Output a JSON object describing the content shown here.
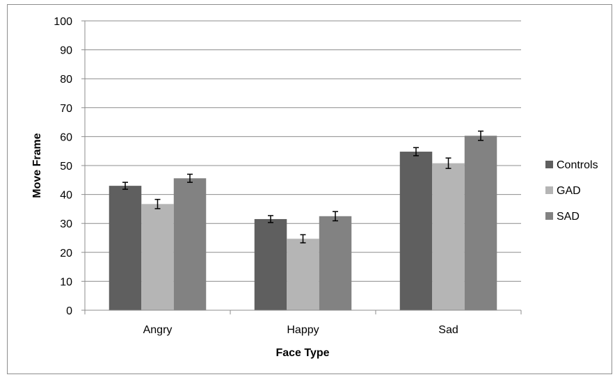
{
  "chart_data": {
    "type": "bar",
    "title": "",
    "xlabel": "Face Type",
    "ylabel": "Move Frame",
    "categories": [
      "Angry",
      "Happy",
      "Sad"
    ],
    "ylim": [
      0,
      100
    ],
    "yticks": [
      "0",
      "10",
      "20",
      "30",
      "40",
      "50",
      "60",
      "70",
      "80",
      "90",
      "100"
    ],
    "grid": true,
    "legend_position": "right",
    "error_bars": true,
    "series": [
      {
        "name": "Controls",
        "color": "#5f5f5f",
        "values": [
          43.0,
          31.5,
          54.8
        ],
        "errors": [
          1.2,
          1.2,
          1.4
        ]
      },
      {
        "name": "GAD",
        "color": "#b5b5b5",
        "values": [
          36.7,
          24.7,
          50.8
        ],
        "errors": [
          1.6,
          1.4,
          1.8
        ]
      },
      {
        "name": "SAD",
        "color": "#828282",
        "values": [
          45.6,
          32.5,
          60.3
        ],
        "errors": [
          1.4,
          1.6,
          1.6
        ]
      }
    ]
  }
}
